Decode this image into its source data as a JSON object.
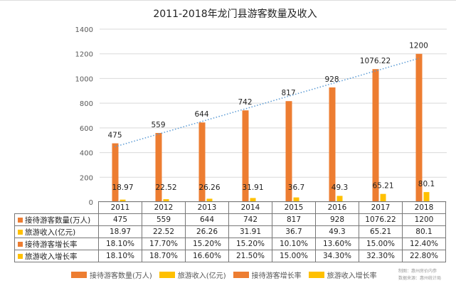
{
  "chart_data": {
    "type": "bar",
    "title": "2011-2018年龙门县游客数量及收入",
    "categories": [
      "2011",
      "2012",
      "2013",
      "2014",
      "2015",
      "2016",
      "2017",
      "2018"
    ],
    "ylim": [
      0,
      1400
    ],
    "yticks": [
      "0",
      "200",
      "400",
      "600",
      "800",
      "1000",
      "1200",
      "1400"
    ],
    "grid": true,
    "series": [
      {
        "name": "接待游客数量(万人)",
        "color": "#ED7D31",
        "values": [
          475,
          559,
          644,
          742,
          817,
          928,
          1076.22,
          1200
        ],
        "labels": [
          "475",
          "559",
          "644",
          "742",
          "817",
          "928",
          "1076.22",
          "1200"
        ]
      },
      {
        "name": "旅游收入(亿元)",
        "color": "#FFC000",
        "values": [
          18.97,
          22.52,
          26.26,
          31.91,
          36.7,
          49.3,
          65.21,
          80.1
        ],
        "labels": [
          "18.97",
          "22.52",
          "26.26",
          "31.91",
          "36.7",
          "49.3",
          "65.21",
          "80.1"
        ]
      },
      {
        "name": "接待游客增长率",
        "color": "#ED7D31",
        "values": [
          "18.10%",
          "17.70%",
          "15.20%",
          "15.20%",
          "10.10%",
          "13.60%",
          "15.00%",
          "12.40%"
        ]
      },
      {
        "name": "旅游收入增长率",
        "color": "#FFC000",
        "values": [
          "18.10%",
          "18.70%",
          "16.60%",
          "21.50%",
          "15.00%",
          "34.30%",
          "32.30%",
          "22.80%"
        ]
      }
    ],
    "trendline": {
      "series": "接待游客数量(万人)",
      "type": "linear",
      "color": "#5B9BD5",
      "style": "dotted"
    },
    "legend_position": "bottom"
  },
  "source": {
    "line1": "制图：惠州房价内参",
    "line2": "数据来源：惠州统计局"
  }
}
